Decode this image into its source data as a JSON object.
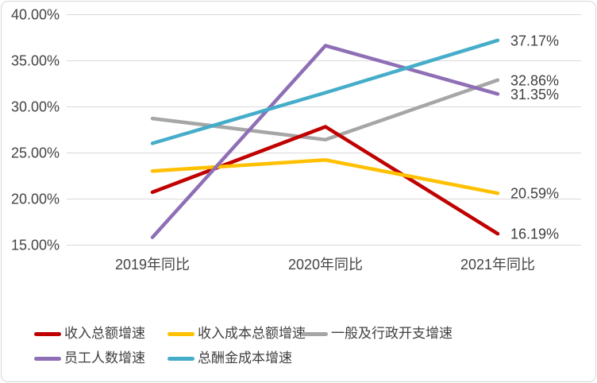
{
  "chart_data": {
    "type": "line",
    "title": "",
    "xlabel": "",
    "ylabel": "",
    "categories": [
      "2019年同比",
      "2020年同比",
      "2021年同比"
    ],
    "series": [
      {
        "name": "收入总额增速",
        "color": "#C00000",
        "values": [
          20.7,
          27.8,
          16.19
        ],
        "end_label": "16.19%"
      },
      {
        "name": "收入成本总额增速",
        "color": "#FFC000",
        "values": [
          23.0,
          24.2,
          20.59
        ],
        "end_label": "20.59%"
      },
      {
        "name": "一般及行政开支增速",
        "color": "#A6A6A6",
        "values": [
          28.7,
          26.4,
          32.86
        ],
        "end_label": "32.86%"
      },
      {
        "name": "员工人数增速",
        "color": "#8E6FB5",
        "values": [
          15.8,
          36.6,
          31.35
        ],
        "end_label": "31.35%"
      },
      {
        "name": "总酬金成本增速",
        "color": "#45ADC9",
        "values": [
          26.0,
          31.5,
          37.17
        ],
        "end_label": "37.17%"
      }
    ],
    "ylim": [
      15,
      40
    ],
    "yticks": [
      {
        "label": "40.00%",
        "value": 40
      },
      {
        "label": "35.00%",
        "value": 35
      },
      {
        "label": "30.00%",
        "value": 30
      },
      {
        "label": "25.00%",
        "value": 25
      },
      {
        "label": "20.00%",
        "value": 20
      },
      {
        "label": "15.00%",
        "value": 15
      }
    ],
    "grid": true,
    "legend_position": "bottom",
    "colors": {
      "gridline": "#D9D9D9",
      "axis_text": "#444444",
      "data_label_text": "#404040",
      "card_border": "#D6D6D6"
    }
  }
}
